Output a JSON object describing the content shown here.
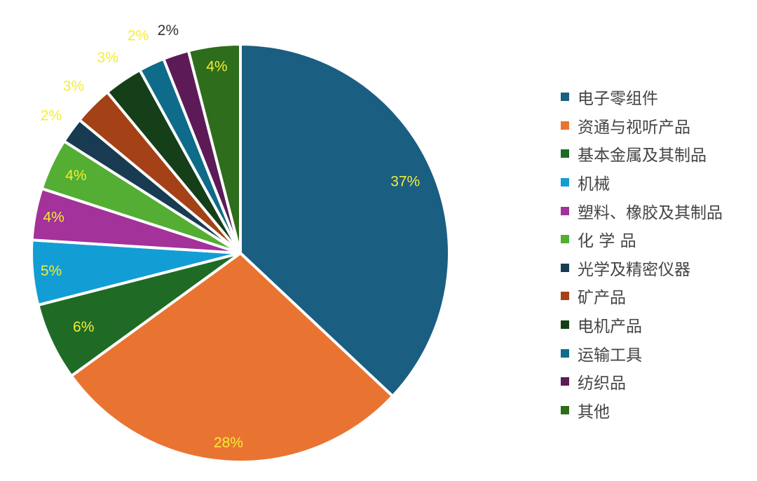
{
  "chart_data": {
    "type": "pie",
    "categories": [
      "电子零组件",
      "资通与视听产品",
      "基本金属及其制品",
      "机械",
      "塑料、橡胶及其制品",
      "化 学 品",
      "光学及精密仪器",
      "矿产品",
      "电机产品",
      "运输工具",
      "纺织品",
      "其他"
    ],
    "values": [
      37,
      28,
      6,
      5,
      4,
      4,
      2,
      3,
      3,
      2,
      2,
      4
    ],
    "data_labels": [
      "37%",
      "28%",
      "6%",
      "5%",
      "4%",
      "4%",
      "2%",
      "3%",
      "3%",
      "2%",
      "2%",
      "4%"
    ],
    "colors": [
      "#1a5e82",
      "#e97431",
      "#1f6b25",
      "#129ed4",
      "#a3329a",
      "#53ae33",
      "#183b52",
      "#a54116",
      "#143f18",
      "#0f6b8a",
      "#5c1b57",
      "#2d6d1c"
    ],
    "label_colors": [
      "#f5ec36",
      "#f5ec36",
      "#f5ec36",
      "#f5ec36",
      "#f5ec36",
      "#f5ec36",
      "#f5ec36",
      "#f5ec36",
      "#f5ec36",
      "#f5ec36",
      "#333333",
      "#f5ec36"
    ],
    "legend_position": "right",
    "start_angle_deg": 0,
    "direction": "clockwise"
  }
}
